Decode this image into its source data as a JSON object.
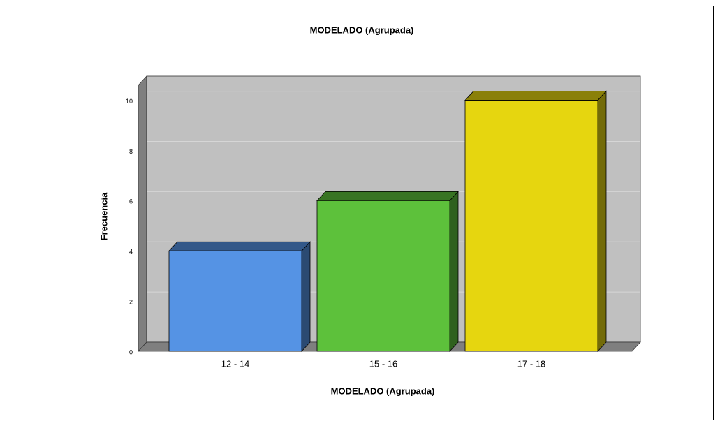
{
  "chart_data": {
    "type": "bar3d",
    "title": "MODELADO (Agrupada)",
    "x_label": "MODELADO (Agrupada)",
    "y_label": "Frecuencia",
    "categories": [
      "12 - 14",
      "15 - 16",
      "17 - 18"
    ],
    "values": [
      4,
      6,
      10
    ],
    "colors": [
      "#5593e4",
      "#5dc13b",
      "#e6d60f"
    ],
    "ylim": [
      0,
      10.6
    ],
    "yticks": [
      0,
      2,
      4,
      6,
      8,
      10
    ],
    "grid": true
  }
}
